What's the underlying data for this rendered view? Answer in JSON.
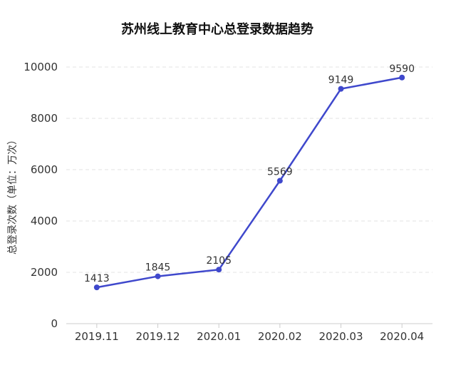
{
  "chart_data": {
    "type": "line",
    "title": "苏州线上教育中心总登录数据趋势",
    "xlabel": "",
    "ylabel": "总登录次数（单位：万次）",
    "categories": [
      "2019.11",
      "2019.12",
      "2020.01",
      "2020.02",
      "2020.03",
      "2020.04"
    ],
    "series": [
      {
        "values": [
          1413,
          1845,
          2105,
          5569,
          9149,
          9590
        ]
      }
    ],
    "ylim": [
      0,
      10000
    ],
    "yticks": [
      "0",
      "2000",
      "4000",
      "6000",
      "8000",
      "10000"
    ],
    "grid": "horizontal dashed",
    "line_color": "#3f48cc"
  }
}
